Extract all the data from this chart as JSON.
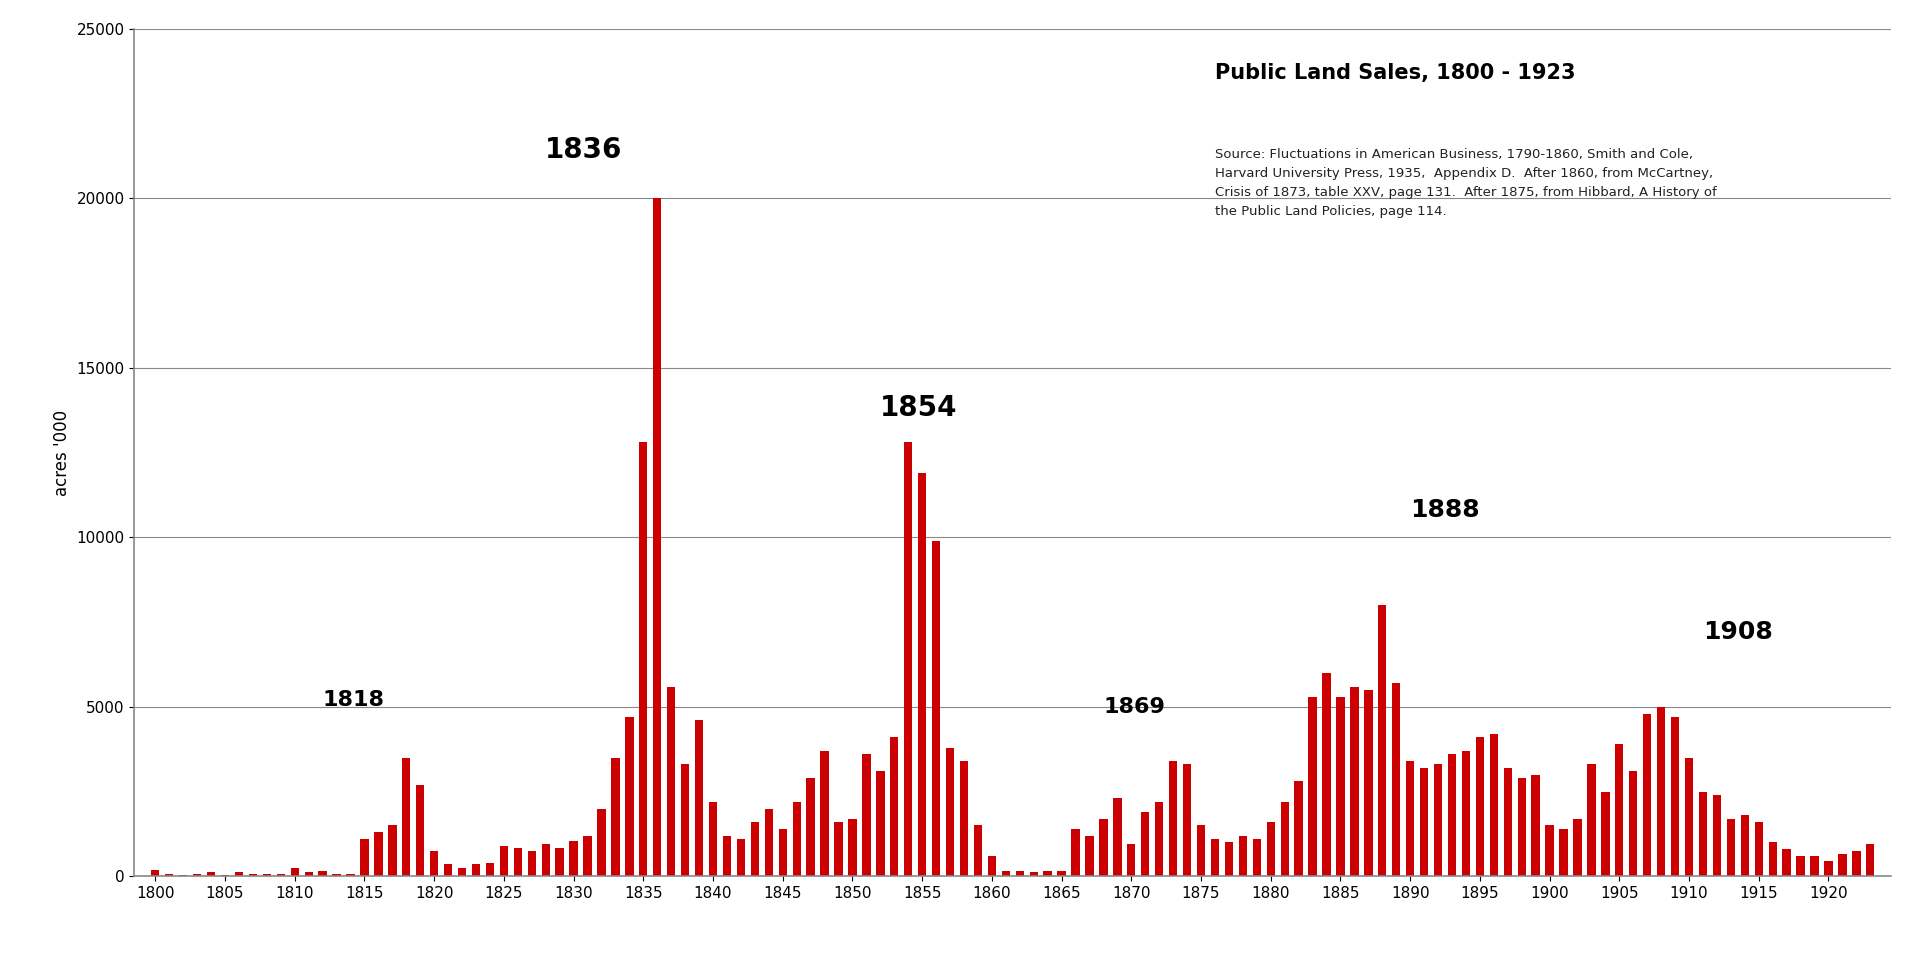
{
  "title": "Public Land Sales, 1800 - 1923",
  "ylabel": "acres '000",
  "source_text": "Source: Fluctuations in American Business, 1790-1860, Smith and Cole,\nHarvard University Press, 1935,  Appendix D.  After 1860, from McCartney,\nCrisis of 1873, table XXV, page 131.  After 1875, from Hibbard, A History of\nthe Public Land Policies, page 114.",
  "bar_color": "#cc0000",
  "background_color": "#ffffff",
  "ylim": [
    0,
    25000
  ],
  "years": [
    1800,
    1801,
    1802,
    1803,
    1804,
    1805,
    1806,
    1807,
    1808,
    1809,
    1810,
    1811,
    1812,
    1813,
    1814,
    1815,
    1816,
    1817,
    1818,
    1819,
    1820,
    1821,
    1822,
    1823,
    1824,
    1825,
    1826,
    1827,
    1828,
    1829,
    1830,
    1831,
    1832,
    1833,
    1834,
    1835,
    1836,
    1837,
    1838,
    1839,
    1840,
    1841,
    1842,
    1843,
    1844,
    1845,
    1846,
    1847,
    1848,
    1849,
    1850,
    1851,
    1852,
    1853,
    1854,
    1855,
    1856,
    1857,
    1858,
    1859,
    1860,
    1861,
    1862,
    1863,
    1864,
    1865,
    1866,
    1867,
    1868,
    1869,
    1870,
    1871,
    1872,
    1873,
    1874,
    1875,
    1876,
    1877,
    1878,
    1879,
    1880,
    1881,
    1882,
    1883,
    1884,
    1885,
    1886,
    1887,
    1888,
    1889,
    1890,
    1891,
    1892,
    1893,
    1894,
    1895,
    1896,
    1897,
    1898,
    1899,
    1900,
    1901,
    1902,
    1903,
    1904,
    1905,
    1906,
    1907,
    1908,
    1909,
    1910,
    1911,
    1912,
    1913,
    1914,
    1915,
    1916,
    1917,
    1918,
    1919,
    1920,
    1921,
    1922,
    1923
  ],
  "values": [
    180,
    70,
    30,
    80,
    130,
    40,
    120,
    80,
    80,
    80,
    250,
    120,
    150,
    70,
    80,
    1100,
    1300,
    1500,
    3500,
    2700,
    750,
    350,
    250,
    350,
    400,
    900,
    850,
    750,
    950,
    850,
    1050,
    1200,
    2000,
    3500,
    4700,
    12800,
    20000,
    5600,
    3300,
    4600,
    2200,
    1200,
    1100,
    1600,
    2000,
    1400,
    2200,
    2900,
    3700,
    1600,
    1700,
    3600,
    3100,
    4100,
    12800,
    11900,
    9900,
    3800,
    3400,
    1500,
    600,
    150,
    150,
    120,
    150,
    170,
    1400,
    1200,
    1700,
    2300,
    950,
    1900,
    2200,
    3400,
    3300,
    1500,
    1100,
    1000,
    1200,
    1100,
    1600,
    2200,
    2800,
    5300,
    6000,
    5300,
    5600,
    5500,
    8000,
    5700,
    3400,
    3200,
    3300,
    3600,
    3700,
    4100,
    4200,
    3200,
    2900,
    3000,
    1500,
    1400,
    1700,
    3300,
    2500,
    3900,
    3100,
    4800,
    5000,
    4700,
    3500,
    2500,
    2400,
    1700,
    1800,
    1600,
    1000,
    800,
    600,
    600,
    450,
    650,
    750,
    950
  ]
}
